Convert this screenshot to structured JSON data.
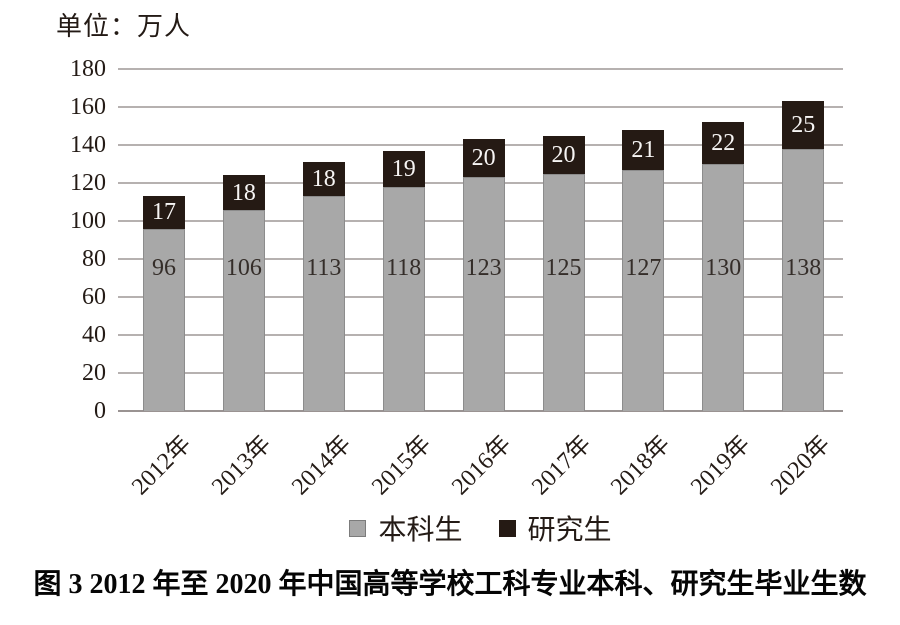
{
  "chart_data": {
    "type": "bar",
    "stacked": true,
    "unit_label": "单位：万人",
    "categories": [
      "2012年",
      "2013年",
      "2014年",
      "2015年",
      "2016年",
      "2017年",
      "2018年",
      "2019年",
      "2020年"
    ],
    "series": [
      {
        "name": "本科生",
        "color": "#a8a8a8",
        "values": [
          96,
          106,
          113,
          118,
          123,
          125,
          127,
          130,
          138
        ]
      },
      {
        "name": "研究生",
        "color": "#251a14",
        "values": [
          17,
          18,
          18,
          19,
          20,
          20,
          21,
          22,
          25
        ]
      }
    ],
    "ylim": [
      0,
      180
    ],
    "ytick_step": 20,
    "yticks": [
      0,
      20,
      40,
      60,
      80,
      100,
      120,
      140,
      160,
      180
    ],
    "grid": "horizontal",
    "legend_position": "bottom",
    "caption": "图 3  2012 年至 2020 年中国高等学校工科专业本科、研究生毕业生数"
  }
}
